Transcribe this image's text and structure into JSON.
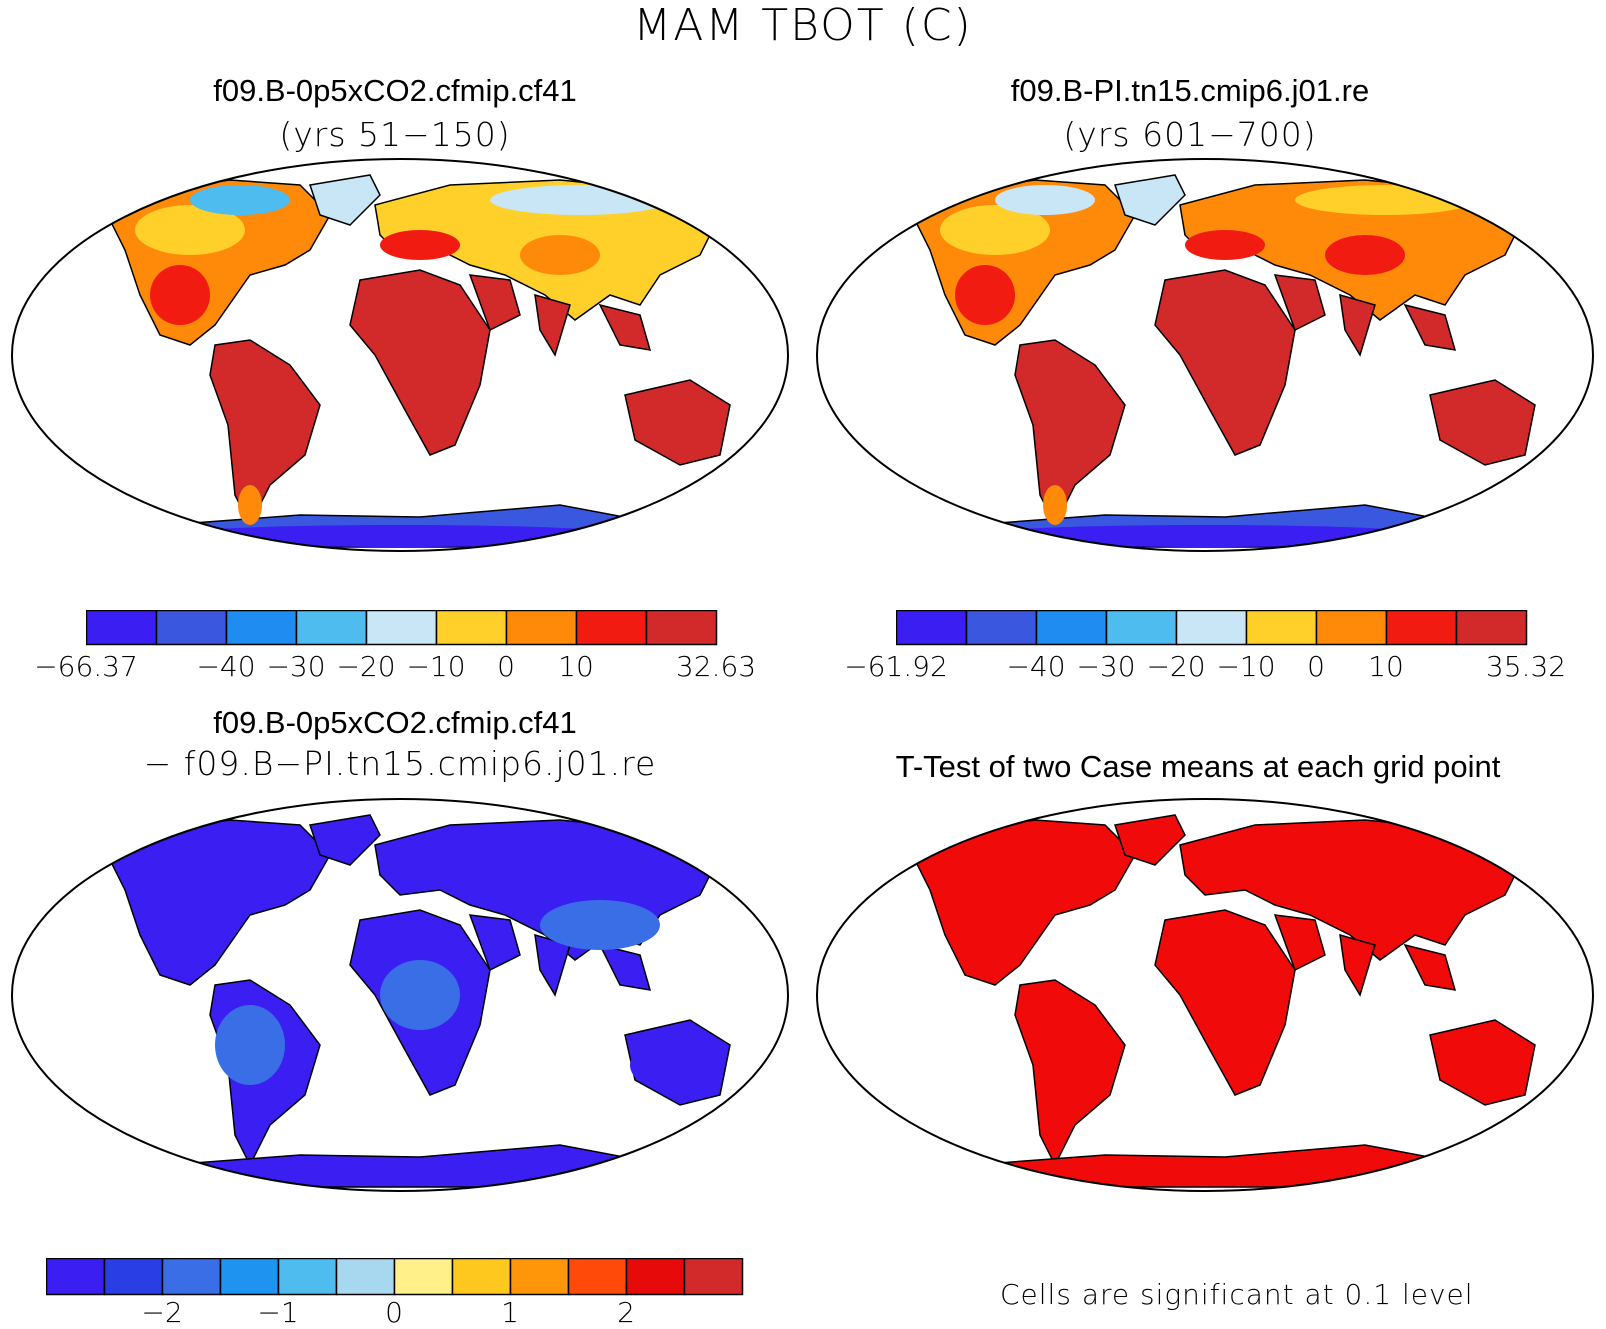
{
  "figure": {
    "title": "MAM TBOT (C)"
  },
  "panels": {
    "case1": {
      "title": "f09.B-0p5xCO2.cfmip.cf41",
      "subtitle": "(yrs 51−150)",
      "colorbar": {
        "colors": [
          "#3a1ef2",
          "#3a57e0",
          "#1e8cf0",
          "#4fbcf0",
          "#c8e6f5",
          "#ffd02a",
          "#ff8a0a",
          "#f21b12",
          "#d22a2a"
        ],
        "labels": [
          "−66.37",
          "−40",
          "−30",
          "−20",
          "−10",
          "0",
          "10",
          "32.63"
        ]
      }
    },
    "case2": {
      "title": "f09.B-PI.tn15.cmip6.j01.re",
      "subtitle": "(yrs 601−700)",
      "colorbar": {
        "colors": [
          "#3a1ef2",
          "#3a57e0",
          "#1e8cf0",
          "#4fbcf0",
          "#c8e6f5",
          "#ffd02a",
          "#ff8a0a",
          "#f21b12",
          "#d22a2a"
        ],
        "labels": [
          "−61.92",
          "−40",
          "−30",
          "−20",
          "−10",
          "0",
          "10",
          "35.32"
        ]
      }
    },
    "difference": {
      "title": "f09.B-0p5xCO2.cfmip.cf41",
      "subtitle": "− f09.B−PI.tn15.cmip6.j01.re",
      "colorbar": {
        "colors": [
          "#3a1ef2",
          "#2a3ee6",
          "#3a6ee6",
          "#1e94f0",
          "#4fbcf0",
          "#a8d8f0",
          "#fff08a",
          "#ffc81e",
          "#ff960a",
          "#ff4a0a",
          "#e60a0a",
          "#d22a2a"
        ],
        "labels": [
          "−2",
          "−1",
          "0",
          "1",
          "2"
        ]
      }
    },
    "ttest": {
      "title": "T-Test of two Case means at each grid point",
      "note": "Cells are significant at 0.1 level",
      "significant_color": "#f00a0a"
    }
  }
}
